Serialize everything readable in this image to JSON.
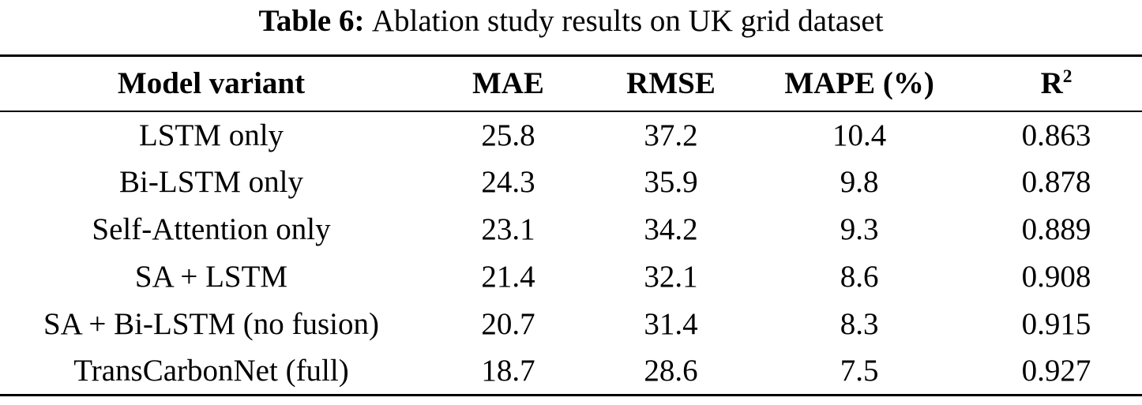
{
  "page": {
    "background_color": "#ffffff",
    "text_color": "#000000"
  },
  "table": {
    "caption": {
      "label": "Table 6:",
      "text": "Ablation study results on UK grid dataset"
    },
    "header": {
      "model_variant": "Model variant",
      "mae": "MAE",
      "rmse": "RMSE",
      "mape": "MAPE (%)",
      "r2_base": "R",
      "r2_sup": "2"
    },
    "rows": [
      [
        "LSTM only",
        "25.8",
        "37.2",
        "10.4",
        "0.863"
      ],
      [
        "Bi-LSTM only",
        "24.3",
        "35.9",
        "9.8",
        "0.878"
      ],
      [
        "Self-Attention only",
        "23.1",
        "34.2",
        "9.3",
        "0.889"
      ],
      [
        "SA + LSTM",
        "21.4",
        "32.1",
        "8.6",
        "0.908"
      ],
      [
        "SA + Bi-LSTM (no fusion)",
        "20.7",
        "31.4",
        "8.3",
        "0.915"
      ],
      [
        "TransCarbonNet (full)",
        "18.7",
        "28.6",
        "7.5",
        "0.927"
      ]
    ]
  },
  "chart_data": {
    "type": "table",
    "title": "Table 6: Ablation study results on UK grid dataset",
    "columns": [
      "Model variant",
      "MAE",
      "RMSE",
      "MAPE (%)",
      "R2"
    ],
    "rows": [
      {
        "model_variant": "LSTM only",
        "mae": 25.8,
        "rmse": 37.2,
        "mape_pct": 10.4,
        "r2": 0.863
      },
      {
        "model_variant": "Bi-LSTM only",
        "mae": 24.3,
        "rmse": 35.9,
        "mape_pct": 9.8,
        "r2": 0.878
      },
      {
        "model_variant": "Self-Attention only",
        "mae": 23.1,
        "rmse": 34.2,
        "mape_pct": 9.3,
        "r2": 0.889
      },
      {
        "model_variant": "SA + LSTM",
        "mae": 21.4,
        "rmse": 32.1,
        "mape_pct": 8.6,
        "r2": 0.908
      },
      {
        "model_variant": "SA + Bi-LSTM (no fusion)",
        "mae": 20.7,
        "rmse": 31.4,
        "mape_pct": 8.3,
        "r2": 0.915
      },
      {
        "model_variant": "TransCarbonNet (full)",
        "mae": 18.7,
        "rmse": 28.6,
        "mape_pct": 7.5,
        "r2": 0.927
      }
    ]
  }
}
